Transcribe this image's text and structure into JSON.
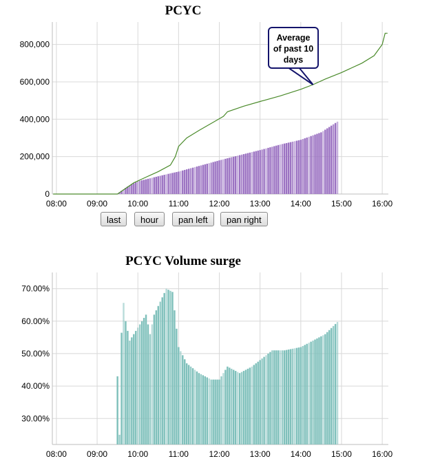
{
  "chart_data": [
    {
      "type": "bar+line",
      "title": "PCYC",
      "x_ticks": [
        "08:00",
        "09:00",
        "10:00",
        "11:00",
        "12:00",
        "13:00",
        "14:00",
        "15:00",
        "16:00"
      ],
      "y_ticks": [
        "0",
        "200,000",
        "400,000",
        "600,000",
        "800,000"
      ],
      "ylim": [
        0,
        920000
      ],
      "xlim_hours": [
        7.9,
        16.15
      ],
      "grid": true,
      "series": [
        {
          "kind": "bar",
          "color": "#9b72c2",
          "start": 9.5,
          "end": 14.92,
          "step": 0.05,
          "anchors": [
            [
              9.5,
              2000
            ],
            [
              9.75,
              40000
            ],
            [
              10.0,
              68000
            ],
            [
              10.5,
              95000
            ],
            [
              10.75,
              108000
            ],
            [
              11.0,
              120000
            ],
            [
              11.5,
              150000
            ],
            [
              12.0,
              180000
            ],
            [
              12.5,
              208000
            ],
            [
              13.0,
              235000
            ],
            [
              13.5,
              265000
            ],
            [
              14.0,
              290000
            ],
            [
              14.5,
              330000
            ],
            [
              14.92,
              390000
            ]
          ]
        },
        {
          "kind": "line",
          "color": "#4a8a2a",
          "points": [
            [
              7.92,
              0
            ],
            [
              9.5,
              0
            ],
            [
              9.7,
              30000
            ],
            [
              9.9,
              60000
            ],
            [
              10.2,
              90000
            ],
            [
              10.5,
              120000
            ],
            [
              10.8,
              155000
            ],
            [
              10.92,
              200000
            ],
            [
              11.0,
              255000
            ],
            [
              11.2,
              300000
            ],
            [
              11.5,
              340000
            ],
            [
              11.9,
              390000
            ],
            [
              12.1,
              415000
            ],
            [
              12.2,
              440000
            ],
            [
              12.6,
              470000
            ],
            [
              13.0,
              495000
            ],
            [
              13.5,
              525000
            ],
            [
              14.0,
              560000
            ],
            [
              14.3,
              585000
            ],
            [
              14.6,
              615000
            ],
            [
              15.0,
              650000
            ],
            [
              15.5,
              700000
            ],
            [
              15.8,
              740000
            ],
            [
              16.0,
              800000
            ],
            [
              16.07,
              860000
            ],
            [
              16.13,
              860000
            ]
          ]
        }
      ],
      "annotation": {
        "text": "Average\nof past 10\ndays",
        "at": [
          14.3,
          585000
        ]
      },
      "buttons": [
        "last",
        "hour",
        "pan left",
        "pan right"
      ]
    },
    {
      "type": "bar",
      "title": "PCYC Volume surge",
      "x_ticks": [
        "08:00",
        "09:00",
        "10:00",
        "11:00",
        "12:00",
        "13:00",
        "14:00",
        "15:00",
        "16:00"
      ],
      "y_ticks": [
        "30.00%",
        "40.00%",
        "50.00%",
        "60.00%",
        "70.00%"
      ],
      "ylim": [
        22,
        75
      ],
      "xlim_hours": [
        7.9,
        16.15
      ],
      "grid": true,
      "series": [
        {
          "kind": "bar",
          "color": "#7fc0bb",
          "start": 9.5,
          "end": 14.92,
          "step": 0.05,
          "anchors": [
            [
              9.5,
              43
            ],
            [
              9.55,
              25
            ],
            [
              9.62,
              69
            ],
            [
              9.7,
              60
            ],
            [
              9.8,
              54
            ],
            [
              10.0,
              58
            ],
            [
              10.2,
              62
            ],
            [
              10.3,
              56
            ],
            [
              10.4,
              62
            ],
            [
              10.55,
              66
            ],
            [
              10.7,
              70
            ],
            [
              10.85,
              69
            ],
            [
              11.0,
              52
            ],
            [
              11.2,
              47
            ],
            [
              11.5,
              44
            ],
            [
              11.8,
              42
            ],
            [
              12.0,
              42
            ],
            [
              12.2,
              46
            ],
            [
              12.5,
              44
            ],
            [
              12.8,
              46
            ],
            [
              13.0,
              48
            ],
            [
              13.3,
              51
            ],
            [
              13.6,
              51
            ],
            [
              14.0,
              52
            ],
            [
              14.3,
              54
            ],
            [
              14.6,
              56
            ],
            [
              14.92,
              60
            ]
          ]
        }
      ]
    }
  ],
  "ui": {
    "btn_last": "last",
    "btn_hour": "hour",
    "btn_pan_left": "pan left",
    "btn_pan_right": "pan right",
    "callout": "Average\nof past 10\ndays",
    "title1": "PCYC",
    "title2": "PCYC Volume surge"
  }
}
